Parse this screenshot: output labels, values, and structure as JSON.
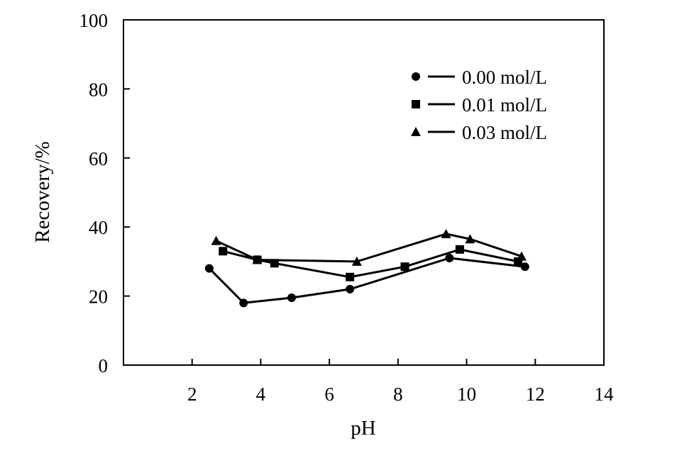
{
  "chart_data": {
    "type": "line",
    "xlabel": "pH",
    "ylabel": "Recovery/%",
    "xlim": [
      0,
      14
    ],
    "ylim": [
      0,
      100
    ],
    "xticks": [
      "2",
      "4",
      "6",
      "8",
      "10",
      "12",
      "14"
    ],
    "yticks": [
      "0",
      "20",
      "40",
      "60",
      "80",
      "100"
    ],
    "grid": false,
    "legend_position": "top-right",
    "series": [
      {
        "name": "0.00 mol/L",
        "marker": "circle",
        "color": "#000000",
        "points": [
          [
            2.5,
            28
          ],
          [
            3.5,
            18
          ],
          [
            4.9,
            19.5
          ],
          [
            6.6,
            22
          ],
          [
            9.5,
            31
          ],
          [
            11.7,
            28.5
          ]
        ]
      },
      {
        "name": "0.01 mol/L",
        "marker": "square",
        "color": "#000000",
        "points": [
          [
            2.9,
            33
          ],
          [
            3.9,
            30.5
          ],
          [
            4.4,
            29.5
          ],
          [
            6.6,
            25.5
          ],
          [
            8.2,
            28.5
          ],
          [
            9.8,
            33.5
          ],
          [
            11.5,
            30
          ]
        ]
      },
      {
        "name": "0.03 mol/L",
        "marker": "triangle",
        "color": "#000000",
        "points": [
          [
            2.7,
            36
          ],
          [
            3.9,
            30.5
          ],
          [
            6.8,
            30
          ],
          [
            9.4,
            38
          ],
          [
            10.1,
            36.5
          ],
          [
            11.6,
            31.5
          ]
        ]
      }
    ]
  }
}
